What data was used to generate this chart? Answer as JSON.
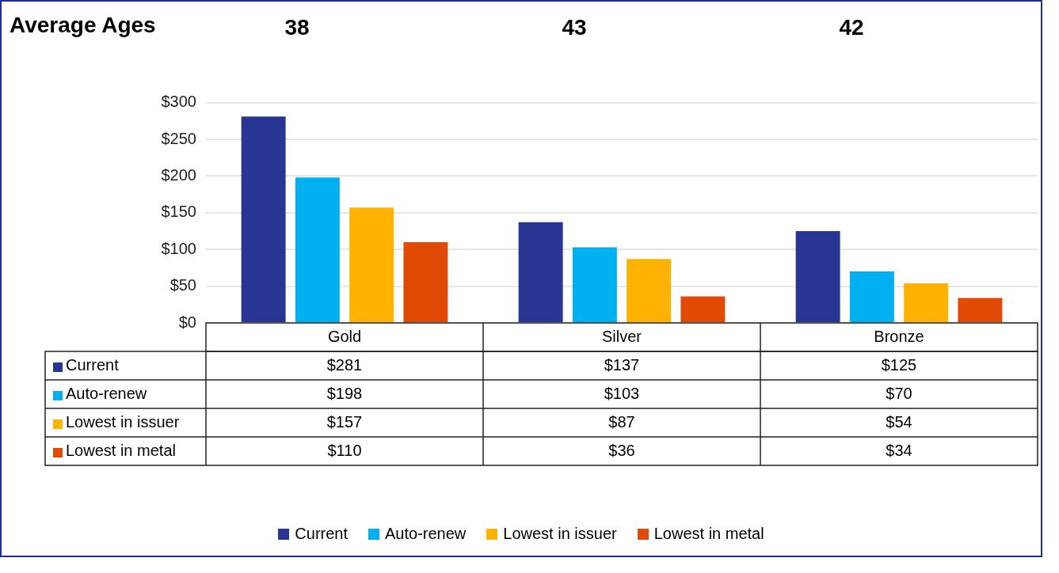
{
  "chart_data": {
    "type": "bar",
    "title": "Average Ages",
    "annotations": [
      "38",
      "43",
      "42"
    ],
    "categories": [
      "Gold",
      "Silver",
      "Bronze"
    ],
    "series": [
      {
        "name": "Current",
        "color": "#283593",
        "values": [
          281,
          137,
          125
        ],
        "value_labels": [
          "$281",
          "$137",
          "$125"
        ]
      },
      {
        "name": "Auto-renew",
        "color": "#00b0f0",
        "values": [
          198,
          103,
          70
        ],
        "value_labels": [
          "$198",
          "$103",
          "$70"
        ]
      },
      {
        "name": "Lowest in issuer",
        "color": "#ffb300",
        "values": [
          157,
          87,
          54
        ],
        "value_labels": [
          "$157",
          "$87",
          "$54"
        ]
      },
      {
        "name": "Lowest in metal",
        "color": "#e04a05",
        "values": [
          110,
          36,
          34
        ],
        "value_labels": [
          "$110",
          "$36",
          "$34"
        ]
      }
    ],
    "ylim": [
      0,
      300
    ],
    "yticks": [
      {
        "value": 0,
        "label": "$0"
      },
      {
        "value": 50,
        "label": "$50"
      },
      {
        "value": 100,
        "label": "$100"
      },
      {
        "value": 150,
        "label": "$150"
      },
      {
        "value": 200,
        "label": "$200"
      },
      {
        "value": 250,
        "label": "$250"
      },
      {
        "value": 300,
        "label": "$300"
      }
    ],
    "grid": "y",
    "legend": "bottom"
  }
}
